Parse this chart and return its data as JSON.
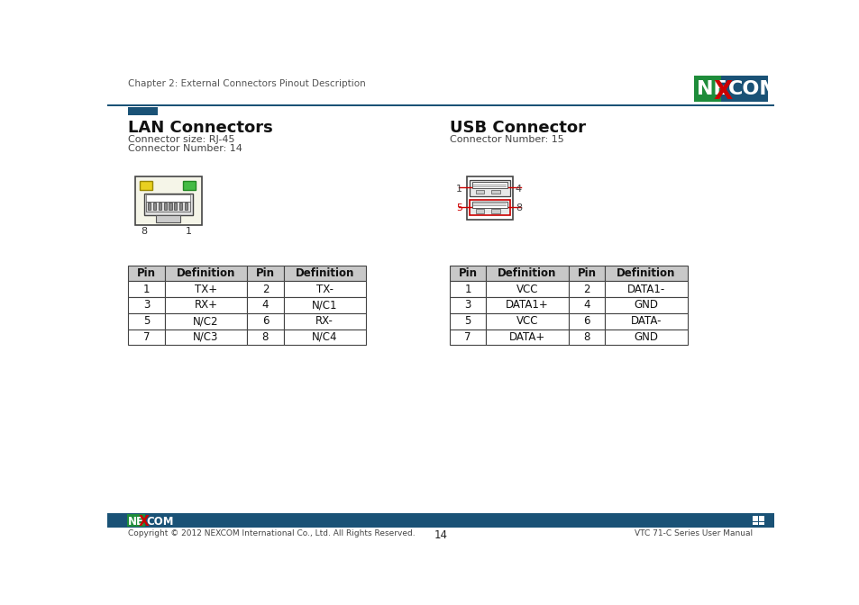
{
  "page_title": "Chapter 2: External Connectors Pinout Description",
  "page_number": "14",
  "footer_right": "VTC 71-C Series User Manual",
  "footer_copyright": "Copyright © 2012 NEXCOM International Co., Ltd. All Rights Reserved.",
  "blue_bar_color": "#1a5276",
  "nexcom_green": "#1e8c3a",
  "lan_title": "LAN Connectors",
  "lan_subtitle1": "Connector size: RJ-45",
  "lan_subtitle2": "Connector Number: 14",
  "usb_title": "USB Connector",
  "usb_subtitle": "Connector Number: 15",
  "lan_table_headers": [
    "Pin",
    "Definition",
    "Pin",
    "Definition"
  ],
  "lan_table_data": [
    [
      "1",
      "TX+",
      "2",
      "TX-"
    ],
    [
      "3",
      "RX+",
      "4",
      "N/C1"
    ],
    [
      "5",
      "N/C2",
      "6",
      "RX-"
    ],
    [
      "7",
      "N/C3",
      "8",
      "N/C4"
    ]
  ],
  "usb_table_headers": [
    "Pin",
    "Definition",
    "Pin",
    "Definition"
  ],
  "usb_table_data": [
    [
      "1",
      "VCC",
      "2",
      "DATA1-"
    ],
    [
      "3",
      "DATA1+",
      "4",
      "GND"
    ],
    [
      "5",
      "VCC",
      "6",
      "DATA-"
    ],
    [
      "7",
      "DATA+",
      "8",
      "GND"
    ]
  ],
  "table_header_bg": "#c8c8c8",
  "table_border_color": "#444444",
  "background_color": "#ffffff",
  "header_blue": "#1a5276",
  "accent_blue": "#2471a3"
}
